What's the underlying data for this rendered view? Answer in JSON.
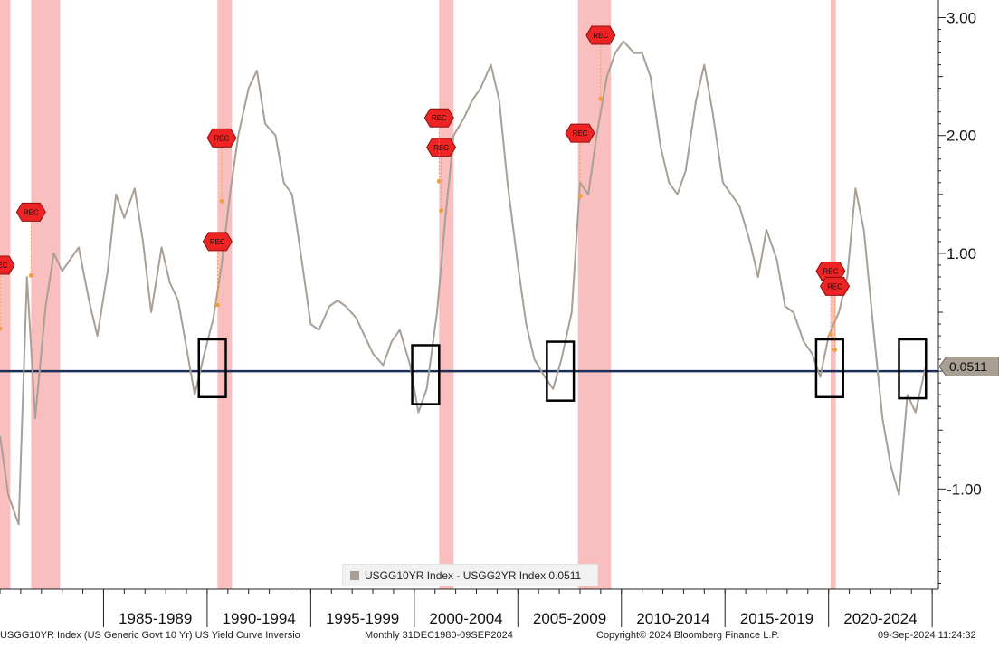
{
  "chart_data": {
    "type": "line",
    "frequency": "Monthly",
    "y_axis": {
      "side": "right",
      "ticks": [
        3.0,
        2.0,
        1.0,
        -1.0
      ],
      "tick_labels": [
        "3.00",
        "2.00",
        "1.00",
        "-1.00"
      ],
      "ylim": [
        -1.85,
        3.15
      ]
    },
    "x_axis": {
      "range": [
        "1980-12",
        "2024-09"
      ],
      "period_labels": [
        "1985-1989",
        "1990-1994",
        "1995-1999",
        "2000-2004",
        "2005-2009",
        "2010-2014",
        "2015-2019",
        "2020-2024"
      ]
    },
    "series": [
      {
        "name": "USGG10YR Index - USGG2YR Index",
        "color": "#a89f95",
        "last_value": 0.0511,
        "last_value_label": "0.0511",
        "points": [
          [
            1980.0,
            -0.55
          ],
          [
            1980.4,
            -1.05
          ],
          [
            1980.9,
            -1.3
          ],
          [
            1981.3,
            0.8
          ],
          [
            1981.7,
            -0.4
          ],
          [
            1982.2,
            0.55
          ],
          [
            1982.6,
            1.0
          ],
          [
            1983.0,
            0.85
          ],
          [
            1983.4,
            0.95
          ],
          [
            1983.8,
            1.05
          ],
          [
            1984.3,
            0.6
          ],
          [
            1984.7,
            0.3
          ],
          [
            1985.2,
            0.85
          ],
          [
            1985.6,
            1.5
          ],
          [
            1986.0,
            1.3
          ],
          [
            1986.5,
            1.55
          ],
          [
            1986.9,
            1.1
          ],
          [
            1987.3,
            0.5
          ],
          [
            1987.8,
            1.05
          ],
          [
            1988.2,
            0.75
          ],
          [
            1988.6,
            0.6
          ],
          [
            1989.0,
            0.2
          ],
          [
            1989.4,
            -0.2
          ],
          [
            1989.8,
            0.1
          ],
          [
            1990.3,
            0.45
          ],
          [
            1990.7,
            0.9
          ],
          [
            1991.1,
            1.5
          ],
          [
            1991.5,
            2.0
          ],
          [
            1992.0,
            2.4
          ],
          [
            1992.4,
            2.55
          ],
          [
            1992.8,
            2.1
          ],
          [
            1993.3,
            2.0
          ],
          [
            1993.7,
            1.6
          ],
          [
            1994.1,
            1.5
          ],
          [
            1994.6,
            0.9
          ],
          [
            1995.0,
            0.4
          ],
          [
            1995.4,
            0.35
          ],
          [
            1995.9,
            0.55
          ],
          [
            1996.3,
            0.6
          ],
          [
            1996.7,
            0.55
          ],
          [
            1997.2,
            0.45
          ],
          [
            1997.6,
            0.3
          ],
          [
            1998.0,
            0.15
          ],
          [
            1998.5,
            0.05
          ],
          [
            1998.9,
            0.25
          ],
          [
            1999.3,
            0.35
          ],
          [
            1999.8,
            0.05
          ],
          [
            2000.2,
            -0.35
          ],
          [
            2000.6,
            -0.15
          ],
          [
            2001.1,
            0.5
          ],
          [
            2001.5,
            1.3
          ],
          [
            2001.9,
            2.0
          ],
          [
            2002.4,
            2.15
          ],
          [
            2002.8,
            2.3
          ],
          [
            2003.2,
            2.4
          ],
          [
            2003.7,
            2.6
          ],
          [
            2004.1,
            2.3
          ],
          [
            2004.5,
            1.6
          ],
          [
            2005.0,
            0.9
          ],
          [
            2005.4,
            0.4
          ],
          [
            2005.8,
            0.1
          ],
          [
            2006.3,
            -0.05
          ],
          [
            2006.7,
            -0.15
          ],
          [
            2007.1,
            0.1
          ],
          [
            2007.6,
            0.5
          ],
          [
            2008.0,
            1.6
          ],
          [
            2008.4,
            1.5
          ],
          [
            2008.8,
            2.0
          ],
          [
            2009.3,
            2.5
          ],
          [
            2009.7,
            2.7
          ],
          [
            2010.1,
            2.8
          ],
          [
            2010.6,
            2.7
          ],
          [
            2011.0,
            2.7
          ],
          [
            2011.4,
            2.5
          ],
          [
            2011.9,
            1.9
          ],
          [
            2012.3,
            1.6
          ],
          [
            2012.7,
            1.5
          ],
          [
            2013.1,
            1.7
          ],
          [
            2013.6,
            2.3
          ],
          [
            2014.0,
            2.6
          ],
          [
            2014.4,
            2.2
          ],
          [
            2014.9,
            1.6
          ],
          [
            2015.3,
            1.5
          ],
          [
            2015.7,
            1.4
          ],
          [
            2016.2,
            1.1
          ],
          [
            2016.6,
            0.8
          ],
          [
            2017.0,
            1.2
          ],
          [
            2017.5,
            0.95
          ],
          [
            2017.9,
            0.55
          ],
          [
            2018.3,
            0.5
          ],
          [
            2018.8,
            0.25
          ],
          [
            2019.2,
            0.15
          ],
          [
            2019.6,
            -0.05
          ],
          [
            2020.0,
            0.3
          ],
          [
            2020.5,
            0.5
          ],
          [
            2020.9,
            0.8
          ],
          [
            2021.3,
            1.55
          ],
          [
            2021.7,
            1.2
          ],
          [
            2022.2,
            0.3
          ],
          [
            2022.6,
            -0.4
          ],
          [
            2023.0,
            -0.8
          ],
          [
            2023.4,
            -1.05
          ],
          [
            2023.8,
            -0.2
          ],
          [
            2024.2,
            -0.35
          ],
          [
            2024.7,
            0.05
          ]
        ]
      }
    ],
    "recessions": [
      {
        "start": 1980.0,
        "end": 1980.5
      },
      {
        "start": 1981.5,
        "end": 1982.9
      },
      {
        "start": 1990.5,
        "end": 1991.2
      },
      {
        "start": 2001.2,
        "end": 2001.9
      },
      {
        "start": 2007.9,
        "end": 2009.5
      },
      {
        "start": 2020.1,
        "end": 2020.35
      }
    ],
    "recession_marker_label": "REC",
    "recession_markers": [
      {
        "x": 1980.0,
        "y": 0.9
      },
      {
        "x": 1981.5,
        "y": 1.35
      },
      {
        "x": 1990.5,
        "y": 1.1
      },
      {
        "x": 1990.7,
        "y": 1.98
      },
      {
        "x": 2001.3,
        "y": 1.9
      },
      {
        "x": 2001.2,
        "y": 2.15
      },
      {
        "x": 2008.0,
        "y": 2.02
      },
      {
        "x": 2009.0,
        "y": 2.85
      },
      {
        "x": 2020.1,
        "y": 0.85
      },
      {
        "x": 2020.3,
        "y": 0.72
      }
    ],
    "zero_line": 0.0,
    "highlight_windows": [
      {
        "start": 1989.6,
        "end": 1990.9,
        "ylow": -0.22,
        "yhigh": 0.27
      },
      {
        "start": 1999.9,
        "end": 2001.2,
        "ylow": -0.28,
        "yhigh": 0.22
      },
      {
        "start": 2006.4,
        "end": 2007.7,
        "ylow": -0.25,
        "yhigh": 0.25
      },
      {
        "start": 2019.4,
        "end": 2020.7,
        "ylow": -0.22,
        "yhigh": 0.27
      },
      {
        "start": 2023.4,
        "end": 2024.7,
        "ylow": -0.23,
        "yhigh": 0.27
      }
    ],
    "legend_placement": "bottom-center",
    "grid": false
  },
  "legend": {
    "label": "USGG10YR Index - USGG2YR Index 0.0511"
  },
  "footer": {
    "left": "USGG10YR Index (US Generic Govt 10 Yr) US Yield Curve Inversio",
    "range": "Monthly 31DEC1980-09SEP2024",
    "copyright": "Copyright© 2024 Bloomberg Finance L.P.",
    "timestamp": "09-Sep-2024 11:24:32"
  },
  "colors": {
    "series_line": "#a89f95",
    "recession_band": "#f8b4b4",
    "zero_line": "#1c2f5a",
    "highlight_box": "#000000",
    "rec_marker": "#ee2323"
  }
}
